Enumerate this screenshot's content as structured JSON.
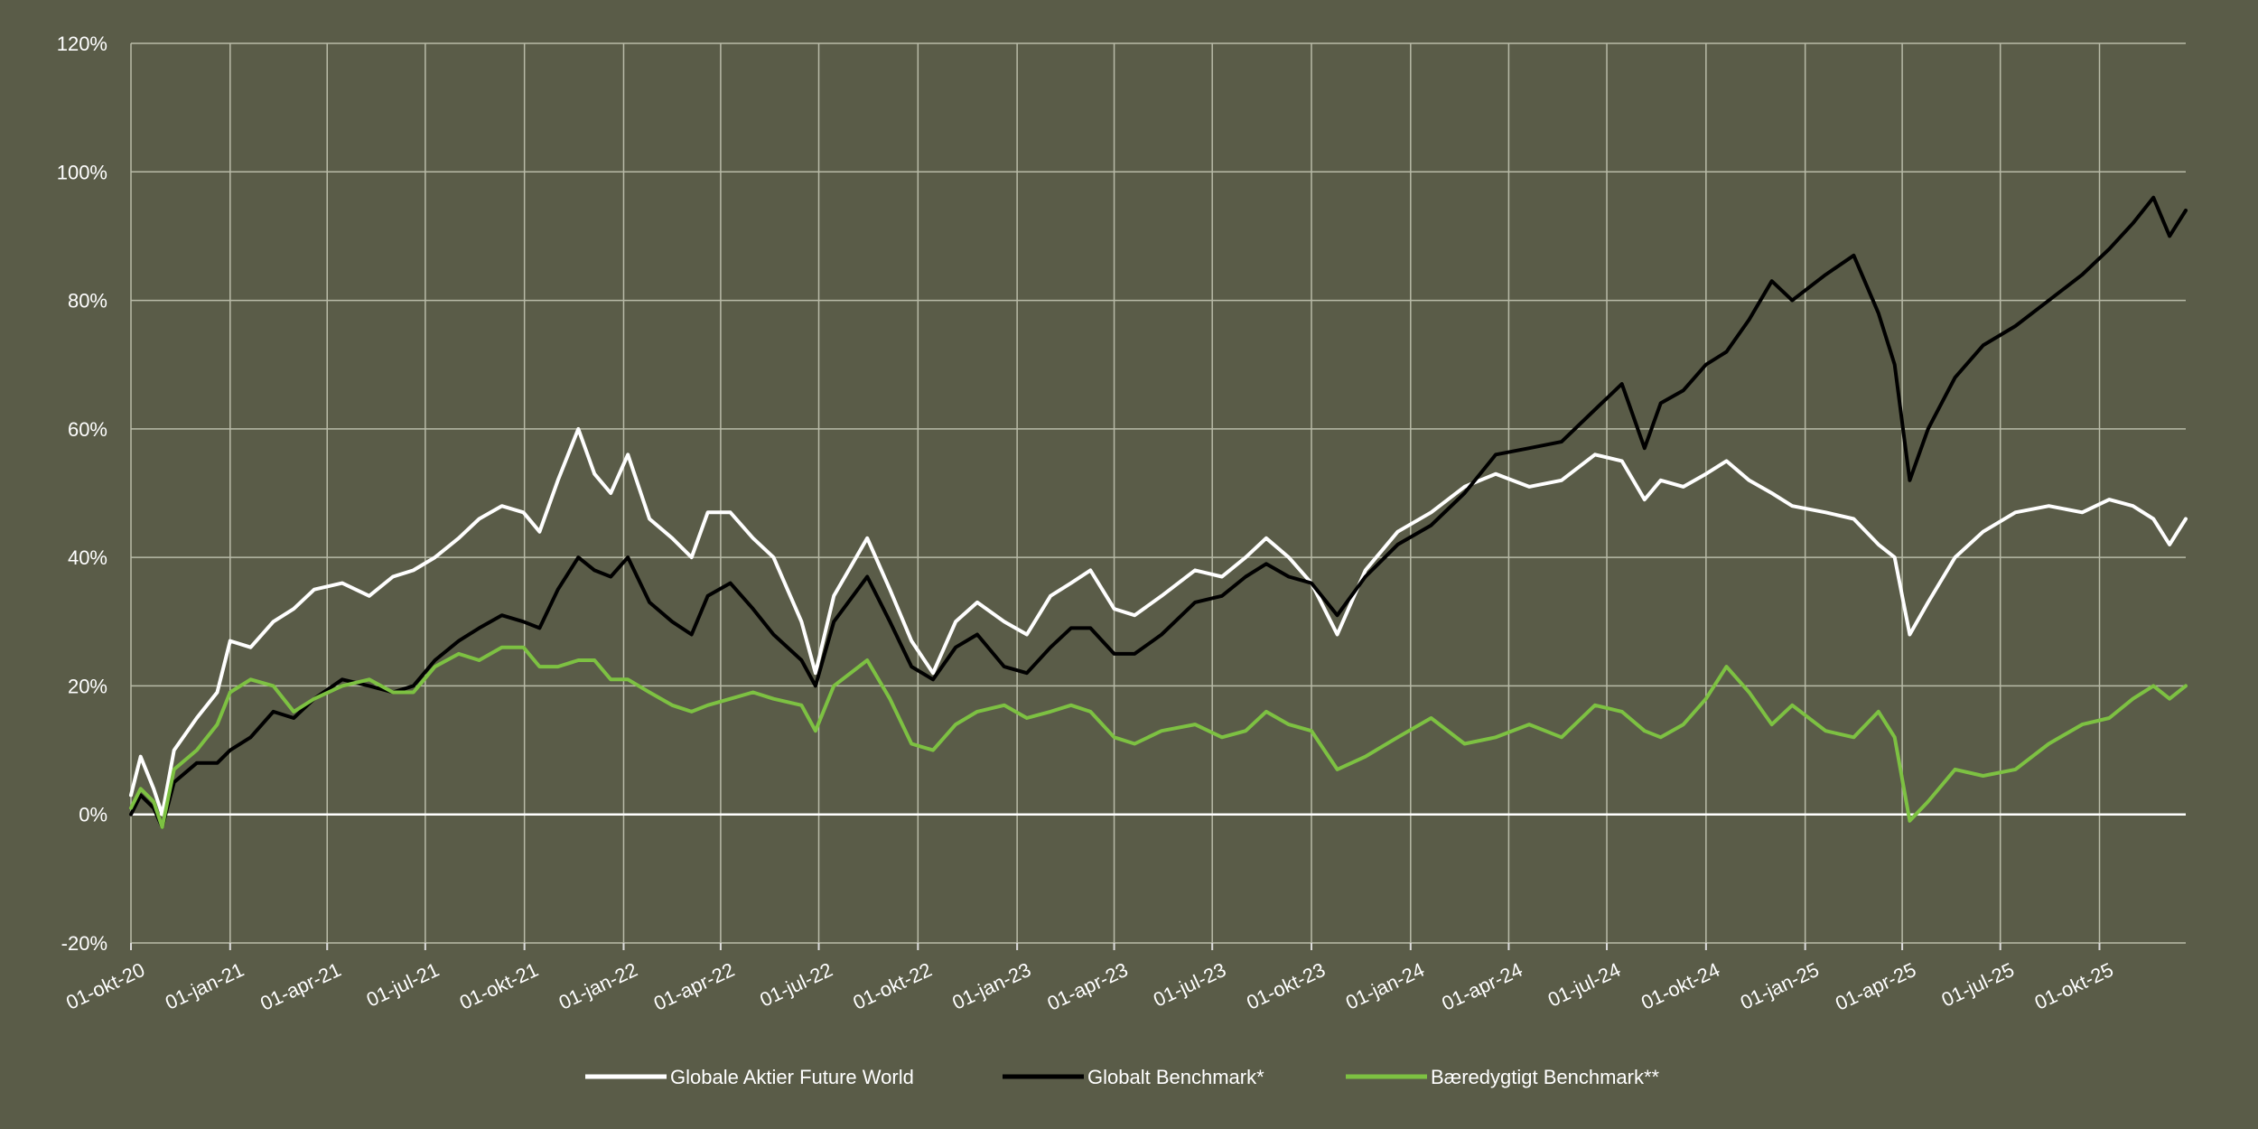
{
  "chart_data": {
    "type": "line",
    "title": "",
    "xlabel": "",
    "ylabel": "",
    "y_unit": "%",
    "ylim": [
      -20,
      120
    ],
    "y_ticks": [
      -20,
      0,
      20,
      40,
      60,
      80,
      100,
      120
    ],
    "y_tick_labels": [
      "-20%",
      "0%",
      "20%",
      "40%",
      "60%",
      "80%",
      "100%",
      "120%"
    ],
    "x_range": [
      "2020-10-01",
      "2025-12-20"
    ],
    "x_ticks": [
      "2020-10-01",
      "2021-01-01",
      "2021-04-01",
      "2021-07-01",
      "2021-10-01",
      "2022-01-01",
      "2022-04-01",
      "2022-07-01",
      "2022-10-01",
      "2023-01-01",
      "2023-04-01",
      "2023-07-01",
      "2023-10-01",
      "2024-01-01",
      "2024-04-01",
      "2024-07-01",
      "2024-10-01",
      "2025-01-01",
      "2025-04-01",
      "2025-07-01",
      "2025-10-01"
    ],
    "x_tick_labels": [
      "01-okt-20",
      "01-jan-21",
      "01-apr-21",
      "01-jul-21",
      "01-okt-21",
      "01-jan-22",
      "01-apr-22",
      "01-jul-22",
      "01-okt-22",
      "01-jan-23",
      "01-apr-23",
      "01-jul-23",
      "01-okt-23",
      "01-jan-24",
      "01-apr-24",
      "01-jul-24",
      "01-okt-24",
      "01-jan-25",
      "01-apr-25",
      "01-jul-25",
      "01-okt-25"
    ],
    "grid": true,
    "legend_position": "bottom",
    "series": [
      {
        "name": "Globale Aktier Future World",
        "color": "#ffffff",
        "points": [
          [
            "2020-10-01",
            3
          ],
          [
            "2020-10-10",
            9
          ],
          [
            "2020-10-22",
            4
          ],
          [
            "2020-10-30",
            0
          ],
          [
            "2020-11-10",
            10
          ],
          [
            "2020-12-01",
            15
          ],
          [
            "2020-12-20",
            19
          ],
          [
            "2021-01-01",
            27
          ],
          [
            "2021-01-20",
            26
          ],
          [
            "2021-02-10",
            30
          ],
          [
            "2021-03-01",
            32
          ],
          [
            "2021-03-20",
            35
          ],
          [
            "2021-04-15",
            36
          ],
          [
            "2021-05-10",
            34
          ],
          [
            "2021-06-01",
            37
          ],
          [
            "2021-06-20",
            38
          ],
          [
            "2021-07-10",
            40
          ],
          [
            "2021-08-01",
            43
          ],
          [
            "2021-08-20",
            46
          ],
          [
            "2021-09-10",
            48
          ],
          [
            "2021-09-30",
            47
          ],
          [
            "2021-10-15",
            44
          ],
          [
            "2021-11-01",
            52
          ],
          [
            "2021-11-20",
            60
          ],
          [
            "2021-12-05",
            53
          ],
          [
            "2021-12-20",
            50
          ],
          [
            "2022-01-05",
            56
          ],
          [
            "2022-01-25",
            46
          ],
          [
            "2022-02-15",
            43
          ],
          [
            "2022-03-05",
            40
          ],
          [
            "2022-03-20",
            47
          ],
          [
            "2022-04-10",
            47
          ],
          [
            "2022-05-01",
            43
          ],
          [
            "2022-05-20",
            40
          ],
          [
            "2022-06-15",
            30
          ],
          [
            "2022-06-28",
            22
          ],
          [
            "2022-07-15",
            34
          ],
          [
            "2022-08-15",
            43
          ],
          [
            "2022-09-05",
            35
          ],
          [
            "2022-09-25",
            27
          ],
          [
            "2022-10-15",
            22
          ],
          [
            "2022-11-05",
            30
          ],
          [
            "2022-11-25",
            33
          ],
          [
            "2022-12-20",
            30
          ],
          [
            "2023-01-10",
            28
          ],
          [
            "2023-02-01",
            34
          ],
          [
            "2023-02-20",
            36
          ],
          [
            "2023-03-10",
            38
          ],
          [
            "2023-04-01",
            32
          ],
          [
            "2023-04-20",
            31
          ],
          [
            "2023-05-15",
            34
          ],
          [
            "2023-06-15",
            38
          ],
          [
            "2023-07-10",
            37
          ],
          [
            "2023-08-01",
            40
          ],
          [
            "2023-08-20",
            43
          ],
          [
            "2023-09-10",
            40
          ],
          [
            "2023-10-01",
            36
          ],
          [
            "2023-10-25",
            28
          ],
          [
            "2023-11-20",
            38
          ],
          [
            "2023-12-20",
            44
          ],
          [
            "2024-01-20",
            47
          ],
          [
            "2024-02-20",
            51
          ],
          [
            "2024-03-20",
            53
          ],
          [
            "2024-04-20",
            51
          ],
          [
            "2024-05-20",
            52
          ],
          [
            "2024-06-20",
            56
          ],
          [
            "2024-07-15",
            55
          ],
          [
            "2024-08-05",
            49
          ],
          [
            "2024-08-20",
            52
          ],
          [
            "2024-09-10",
            51
          ],
          [
            "2024-10-01",
            53
          ],
          [
            "2024-10-20",
            55
          ],
          [
            "2024-11-10",
            52
          ],
          [
            "2024-12-01",
            50
          ],
          [
            "2024-12-20",
            48
          ],
          [
            "2025-01-20",
            47
          ],
          [
            "2025-02-15",
            46
          ],
          [
            "2025-03-10",
            42
          ],
          [
            "2025-03-25",
            40
          ],
          [
            "2025-04-08",
            28
          ],
          [
            "2025-04-25",
            33
          ],
          [
            "2025-05-20",
            40
          ],
          [
            "2025-06-15",
            44
          ],
          [
            "2025-07-15",
            47
          ],
          [
            "2025-08-15",
            48
          ],
          [
            "2025-09-15",
            47
          ],
          [
            "2025-10-10",
            49
          ],
          [
            "2025-11-01",
            48
          ],
          [
            "2025-11-20",
            46
          ],
          [
            "2025-12-05",
            42
          ],
          [
            "2025-12-20",
            46
          ]
        ]
      },
      {
        "name": "Globalt Benchmark*",
        "color": "#000000",
        "points": [
          [
            "2020-10-01",
            0
          ],
          [
            "2020-10-10",
            3
          ],
          [
            "2020-10-22",
            1
          ],
          [
            "2020-10-30",
            -2
          ],
          [
            "2020-11-10",
            5
          ],
          [
            "2020-12-01",
            8
          ],
          [
            "2020-12-20",
            8
          ],
          [
            "2021-01-01",
            10
          ],
          [
            "2021-01-20",
            12
          ],
          [
            "2021-02-10",
            16
          ],
          [
            "2021-03-01",
            15
          ],
          [
            "2021-03-20",
            18
          ],
          [
            "2021-04-15",
            21
          ],
          [
            "2021-05-10",
            20
          ],
          [
            "2021-06-01",
            19
          ],
          [
            "2021-06-20",
            20
          ],
          [
            "2021-07-10",
            24
          ],
          [
            "2021-08-01",
            27
          ],
          [
            "2021-08-20",
            29
          ],
          [
            "2021-09-10",
            31
          ],
          [
            "2021-09-30",
            30
          ],
          [
            "2021-10-15",
            29
          ],
          [
            "2021-11-01",
            35
          ],
          [
            "2021-11-20",
            40
          ],
          [
            "2021-12-05",
            38
          ],
          [
            "2021-12-20",
            37
          ],
          [
            "2022-01-05",
            40
          ],
          [
            "2022-01-25",
            33
          ],
          [
            "2022-02-15",
            30
          ],
          [
            "2022-03-05",
            28
          ],
          [
            "2022-03-20",
            34
          ],
          [
            "2022-04-10",
            36
          ],
          [
            "2022-05-01",
            32
          ],
          [
            "2022-05-20",
            28
          ],
          [
            "2022-06-15",
            24
          ],
          [
            "2022-06-28",
            20
          ],
          [
            "2022-07-15",
            30
          ],
          [
            "2022-08-15",
            37
          ],
          [
            "2022-09-05",
            30
          ],
          [
            "2022-09-25",
            23
          ],
          [
            "2022-10-15",
            21
          ],
          [
            "2022-11-05",
            26
          ],
          [
            "2022-11-25",
            28
          ],
          [
            "2022-12-20",
            23
          ],
          [
            "2023-01-10",
            22
          ],
          [
            "2023-02-01",
            26
          ],
          [
            "2023-02-20",
            29
          ],
          [
            "2023-03-10",
            29
          ],
          [
            "2023-04-01",
            25
          ],
          [
            "2023-04-20",
            25
          ],
          [
            "2023-05-15",
            28
          ],
          [
            "2023-06-15",
            33
          ],
          [
            "2023-07-10",
            34
          ],
          [
            "2023-08-01",
            37
          ],
          [
            "2023-08-20",
            39
          ],
          [
            "2023-09-10",
            37
          ],
          [
            "2023-10-01",
            36
          ],
          [
            "2023-10-25",
            31
          ],
          [
            "2023-11-20",
            37
          ],
          [
            "2023-12-20",
            42
          ],
          [
            "2024-01-20",
            45
          ],
          [
            "2024-02-20",
            50
          ],
          [
            "2024-03-20",
            56
          ],
          [
            "2024-04-20",
            57
          ],
          [
            "2024-05-20",
            58
          ],
          [
            "2024-06-20",
            63
          ],
          [
            "2024-07-15",
            67
          ],
          [
            "2024-08-05",
            57
          ],
          [
            "2024-08-20",
            64
          ],
          [
            "2024-09-10",
            66
          ],
          [
            "2024-10-01",
            70
          ],
          [
            "2024-10-20",
            72
          ],
          [
            "2024-11-10",
            77
          ],
          [
            "2024-12-01",
            83
          ],
          [
            "2024-12-20",
            80
          ],
          [
            "2025-01-20",
            84
          ],
          [
            "2025-02-15",
            87
          ],
          [
            "2025-03-10",
            78
          ],
          [
            "2025-03-25",
            70
          ],
          [
            "2025-04-08",
            52
          ],
          [
            "2025-04-25",
            60
          ],
          [
            "2025-05-20",
            68
          ],
          [
            "2025-06-15",
            73
          ],
          [
            "2025-07-15",
            76
          ],
          [
            "2025-08-15",
            80
          ],
          [
            "2025-09-15",
            84
          ],
          [
            "2025-10-10",
            88
          ],
          [
            "2025-11-01",
            92
          ],
          [
            "2025-11-20",
            96
          ],
          [
            "2025-12-05",
            90
          ],
          [
            "2025-12-20",
            94
          ]
        ]
      },
      {
        "name": "Bæredygtigt Benchmark**",
        "color": "#7dc142",
        "points": [
          [
            "2020-10-01",
            1
          ],
          [
            "2020-10-10",
            4
          ],
          [
            "2020-10-22",
            2
          ],
          [
            "2020-10-30",
            -2
          ],
          [
            "2020-11-10",
            7
          ],
          [
            "2020-12-01",
            10
          ],
          [
            "2020-12-20",
            14
          ],
          [
            "2021-01-01",
            19
          ],
          [
            "2021-01-20",
            21
          ],
          [
            "2021-02-10",
            20
          ],
          [
            "2021-03-01",
            16
          ],
          [
            "2021-03-20",
            18
          ],
          [
            "2021-04-15",
            20
          ],
          [
            "2021-05-10",
            21
          ],
          [
            "2021-06-01",
            19
          ],
          [
            "2021-06-20",
            19
          ],
          [
            "2021-07-10",
            23
          ],
          [
            "2021-08-01",
            25
          ],
          [
            "2021-08-20",
            24
          ],
          [
            "2021-09-10",
            26
          ],
          [
            "2021-09-30",
            26
          ],
          [
            "2021-10-15",
            23
          ],
          [
            "2021-11-01",
            23
          ],
          [
            "2021-11-20",
            24
          ],
          [
            "2021-12-05",
            24
          ],
          [
            "2021-12-20",
            21
          ],
          [
            "2022-01-05",
            21
          ],
          [
            "2022-01-25",
            19
          ],
          [
            "2022-02-15",
            17
          ],
          [
            "2022-03-05",
            16
          ],
          [
            "2022-03-20",
            17
          ],
          [
            "2022-04-10",
            18
          ],
          [
            "2022-05-01",
            19
          ],
          [
            "2022-05-20",
            18
          ],
          [
            "2022-06-15",
            17
          ],
          [
            "2022-06-28",
            13
          ],
          [
            "2022-07-15",
            20
          ],
          [
            "2022-08-15",
            24
          ],
          [
            "2022-09-05",
            18
          ],
          [
            "2022-09-25",
            11
          ],
          [
            "2022-10-15",
            10
          ],
          [
            "2022-11-05",
            14
          ],
          [
            "2022-11-25",
            16
          ],
          [
            "2022-12-20",
            17
          ],
          [
            "2023-01-10",
            15
          ],
          [
            "2023-02-01",
            16
          ],
          [
            "2023-02-20",
            17
          ],
          [
            "2023-03-10",
            16
          ],
          [
            "2023-04-01",
            12
          ],
          [
            "2023-04-20",
            11
          ],
          [
            "2023-05-15",
            13
          ],
          [
            "2023-06-15",
            14
          ],
          [
            "2023-07-10",
            12
          ],
          [
            "2023-08-01",
            13
          ],
          [
            "2023-08-20",
            16
          ],
          [
            "2023-09-10",
            14
          ],
          [
            "2023-10-01",
            13
          ],
          [
            "2023-10-25",
            7
          ],
          [
            "2023-11-20",
            9
          ],
          [
            "2023-12-20",
            12
          ],
          [
            "2024-01-20",
            15
          ],
          [
            "2024-02-20",
            11
          ],
          [
            "2024-03-20",
            12
          ],
          [
            "2024-04-20",
            14
          ],
          [
            "2024-05-20",
            12
          ],
          [
            "2024-06-20",
            17
          ],
          [
            "2024-07-15",
            16
          ],
          [
            "2024-08-05",
            13
          ],
          [
            "2024-08-20",
            12
          ],
          [
            "2024-09-10",
            14
          ],
          [
            "2024-10-01",
            18
          ],
          [
            "2024-10-20",
            23
          ],
          [
            "2024-11-10",
            19
          ],
          [
            "2024-12-01",
            14
          ],
          [
            "2024-12-20",
            17
          ],
          [
            "2025-01-20",
            13
          ],
          [
            "2025-02-15",
            12
          ],
          [
            "2025-03-10",
            16
          ],
          [
            "2025-03-25",
            12
          ],
          [
            "2025-04-08",
            -1
          ],
          [
            "2025-04-25",
            2
          ],
          [
            "2025-05-20",
            7
          ],
          [
            "2025-06-15",
            6
          ],
          [
            "2025-07-15",
            7
          ],
          [
            "2025-08-15",
            11
          ],
          [
            "2025-09-15",
            14
          ],
          [
            "2025-10-10",
            15
          ],
          [
            "2025-11-01",
            18
          ],
          [
            "2025-11-20",
            20
          ],
          [
            "2025-12-05",
            18
          ],
          [
            "2025-12-20",
            20
          ]
        ]
      }
    ]
  }
}
